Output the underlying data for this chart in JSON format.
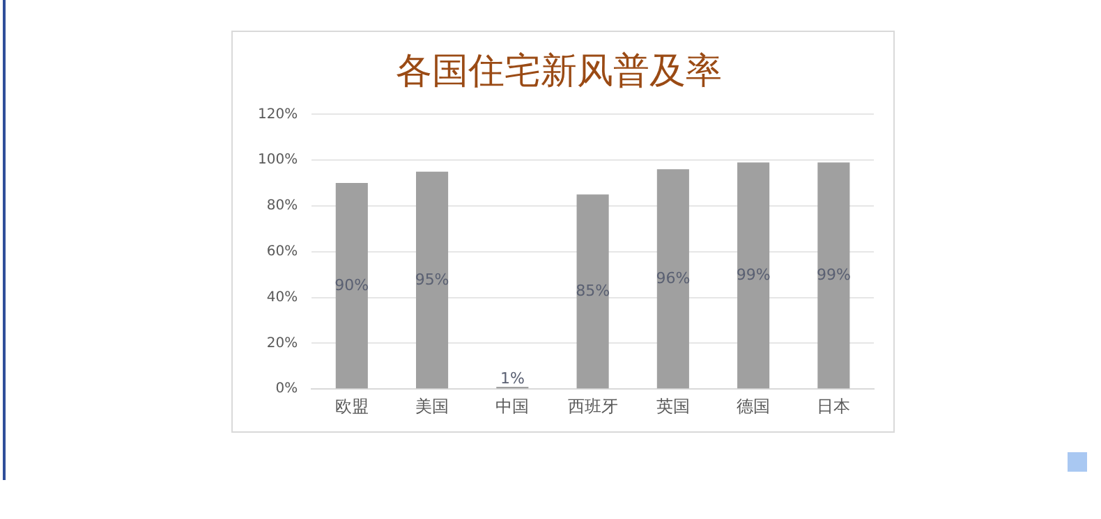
{
  "chart_data": {
    "type": "bar",
    "title": "各国住宅新风普及率",
    "categories": [
      "欧盟",
      "美国",
      "中国",
      "西班牙",
      "英国",
      "德国",
      "日本"
    ],
    "values": [
      90,
      95,
      1,
      85,
      96,
      99,
      99
    ],
    "color": "#a0a0a0",
    "value_labels": [
      "90%",
      "95%",
      "1%",
      "85%",
      "96%",
      "99%",
      "99%"
    ],
    "ylim": [
      0,
      120
    ],
    "yticks": [
      {
        "value": 0,
        "label": "0%"
      },
      {
        "value": 20,
        "label": "20%"
      },
      {
        "value": 40,
        "label": "40%"
      },
      {
        "value": 60,
        "label": "60%"
      },
      {
        "value": 80,
        "label": "80%"
      },
      {
        "value": 100,
        "label": "100%"
      },
      {
        "value": 120,
        "label": "120%"
      }
    ],
    "grid": "y",
    "legend": false
  }
}
